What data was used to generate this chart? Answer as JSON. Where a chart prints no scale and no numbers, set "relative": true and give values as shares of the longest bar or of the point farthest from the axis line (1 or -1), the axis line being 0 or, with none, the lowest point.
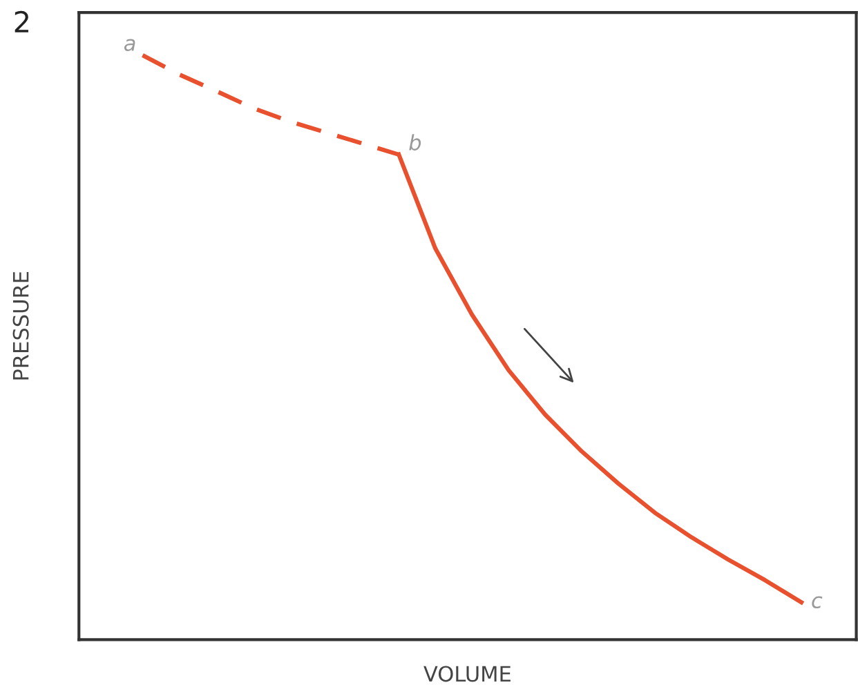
{
  "chart_data": {
    "type": "line",
    "relative": true,
    "xlabel": "VOLUME",
    "ylabel": "PRESSURE",
    "legend": false,
    "marker": "none",
    "categories": [
      null,
      null,
      null,
      null,
      null,
      null,
      null,
      null,
      null,
      null,
      null,
      null,
      null,
      null,
      null,
      null,
      null,
      null,
      null
    ],
    "annotations": [
      "2",
      "a",
      "b",
      "c"
    ],
    "series": [
      {
        "color": "#e8502e",
        "line_style": "dashed",
        "values": [
          1.0,
          0.967,
          0.939,
          0.91,
          0.887,
          0.868,
          0.849,
          0.83,
          null,
          null,
          null,
          null,
          null,
          null,
          null,
          null,
          null,
          null,
          null
        ]
      },
      {
        "color": "#e8502e",
        "line_style": "solid",
        "values": [
          null,
          null,
          null,
          null,
          null,
          null,
          null,
          0.83,
          0.669,
          0.556,
          0.461,
          0.385,
          0.322,
          0.267,
          0.217,
          0.175,
          0.137,
          0.102,
          0.064
        ]
      }
    ]
  }
}
